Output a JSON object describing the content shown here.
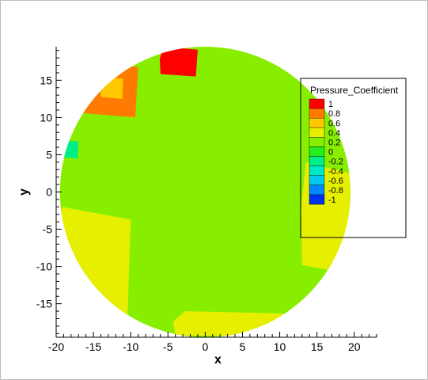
{
  "chart_data": {
    "type": "heatmap",
    "title": "",
    "xlabel": "x",
    "ylabel": "y",
    "xlim": [
      -20,
      23
    ],
    "ylim": [
      -19.5,
      19.5
    ],
    "x_ticks": [
      -20,
      -15,
      -10,
      -5,
      0,
      5,
      10,
      15,
      20
    ],
    "y_ticks": [
      15,
      10,
      5,
      0,
      -5,
      -10,
      -15
    ],
    "grid": false,
    "legend": {
      "title": "Pressure_Coefficient",
      "placement": "right",
      "levels": [
        "1",
        "0.8",
        "0.6",
        "0.4",
        "0.2",
        "0",
        "-0.2",
        "-0.4",
        "-0.6",
        "-0.8",
        "-1"
      ],
      "colors": [
        "#ff0000",
        "#ff7a00",
        "#ffc800",
        "#e6ef00",
        "#88ee00",
        "#22ee22",
        "#00ee88",
        "#00e6c8",
        "#00c8ee",
        "#0088ff",
        "#0033ee"
      ]
    },
    "field": {
      "domain": "disc",
      "center": [
        0,
        0
      ],
      "radius": 19.5,
      "base_value": 0.1,
      "regions": [
        {
          "value": 0.95,
          "x": [
            -6,
            -1
          ],
          "y": [
            15.5,
            19.5
          ],
          "note": "red"
        },
        {
          "value": 0.75,
          "x": [
            -16.5,
            -9
          ],
          "y": [
            10,
            17.5
          ],
          "note": "orange"
        },
        {
          "value": 0.55,
          "x": [
            -14,
            -11
          ],
          "y": [
            12.5,
            15.5
          ],
          "note": "yellow"
        },
        {
          "value": 0.4,
          "x": [
            -20,
            -10
          ],
          "y": [
            -19,
            -2
          ],
          "note": "left-bottom yellow-green"
        },
        {
          "value": 0.4,
          "x": [
            13,
            19.5
          ],
          "y": [
            -11,
            4
          ],
          "note": "right yellow-green"
        },
        {
          "value": 0.4,
          "x": [
            -4,
            12
          ],
          "y": [
            -19.5,
            -16
          ],
          "note": "bottom yellow-green"
        },
        {
          "value": -0.2,
          "x": [
            -19.5,
            -17
          ],
          "y": [
            4.5,
            7
          ],
          "note": "cyan-green"
        },
        {
          "value": 0.2,
          "x": [
            -4,
            7
          ],
          "y": [
            -6,
            10
          ],
          "note": "central lighter green"
        }
      ]
    }
  }
}
